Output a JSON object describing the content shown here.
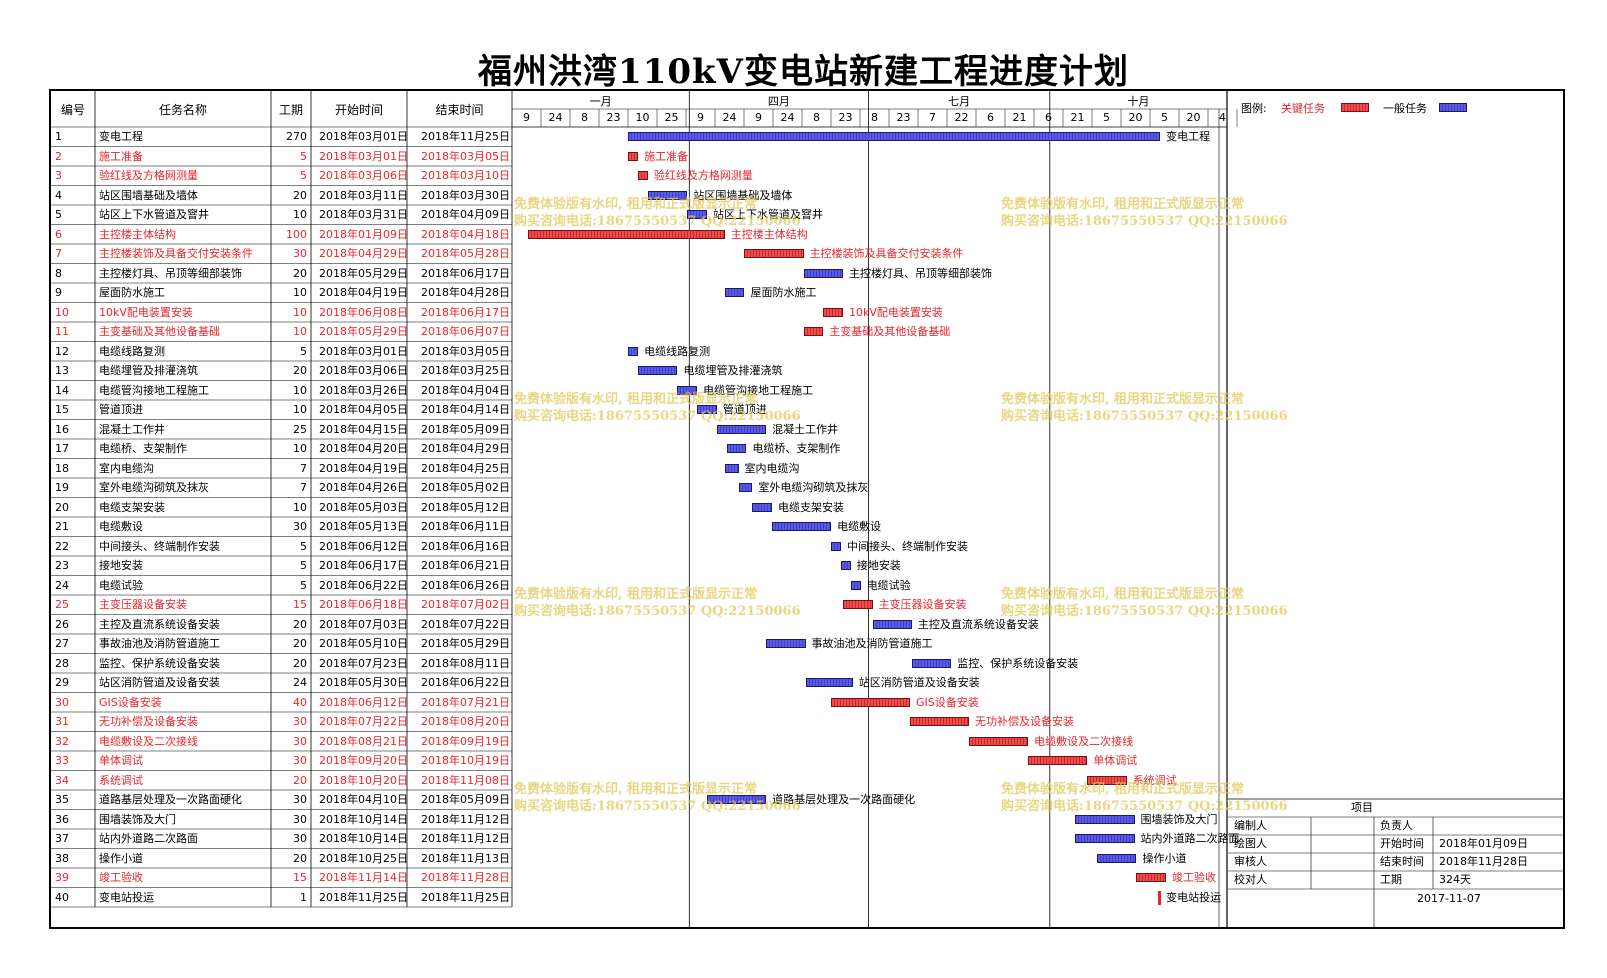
{
  "title": "福州洪湾110kV变电站新建工程进度计划",
  "headers": {
    "id": "编号",
    "name": "任务名称",
    "dur": "工期",
    "start": "开始时间",
    "end": "结束时间"
  },
  "months": [
    {
      "label": "一月",
      "day": 0
    },
    {
      "label": "四月",
      "day": 90
    },
    {
      "label": "七月",
      "day": 181
    },
    {
      "label": "十月",
      "day": 273
    }
  ],
  "ticks": [
    "9",
    "24",
    "8",
    "23",
    "10",
    "25",
    "9",
    "24",
    "9",
    "24",
    "8",
    "23",
    "8",
    "23",
    "7",
    "22",
    "6",
    "21",
    "6",
    "21",
    "5",
    "20",
    "5",
    "20",
    "4"
  ],
  "legend": {
    "label": "图例:",
    "critical": "关键任务",
    "normal": "一般任务",
    "critical_color": "#e8262c",
    "normal_color": "#4b4bd9"
  },
  "watermark": {
    "line1": "免费体验版有水印, 租用和正式版显示正常",
    "line2": "购买咨询电话:18675550537 QQ:22150066"
  },
  "tasks": [
    {
      "id": "1",
      "name": "变电工程",
      "dur": "270",
      "start": "2018年03月01日",
      "end": "2018年11月25日",
      "s": 59,
      "d": 270,
      "crit": false
    },
    {
      "id": "2",
      "name": "施工准备",
      "dur": "5",
      "start": "2018年03月01日",
      "end": "2018年03月05日",
      "s": 59,
      "d": 5,
      "crit": true
    },
    {
      "id": "3",
      "name": "验红线及方格网测量",
      "dur": "5",
      "start": "2018年03月06日",
      "end": "2018年03月10日",
      "s": 64,
      "d": 5,
      "crit": true
    },
    {
      "id": "4",
      "name": "站区围墙基础及墙体",
      "dur": "20",
      "start": "2018年03月11日",
      "end": "2018年03月30日",
      "s": 69,
      "d": 20,
      "crit": false
    },
    {
      "id": "5",
      "name": "站区上下水管道及窨井",
      "dur": "10",
      "start": "2018年03月31日",
      "end": "2018年04月09日",
      "s": 89,
      "d": 10,
      "crit": false
    },
    {
      "id": "6",
      "name": "主控楼主体结构",
      "dur": "100",
      "start": "2018年01月09日",
      "end": "2018年04月18日",
      "s": 8,
      "d": 100,
      "crit": true
    },
    {
      "id": "7",
      "name": "主控楼装饰及具备交付安装条件",
      "dur": "30",
      "start": "2018年04月29日",
      "end": "2018年05月28日",
      "s": 118,
      "d": 30,
      "crit": true
    },
    {
      "id": "8",
      "name": "主控楼灯具、吊顶等细部装饰",
      "dur": "20",
      "start": "2018年05月29日",
      "end": "2018年06月17日",
      "s": 148,
      "d": 20,
      "crit": false
    },
    {
      "id": "9",
      "name": "屋面防水施工",
      "dur": "10",
      "start": "2018年04月19日",
      "end": "2018年04月28日",
      "s": 108,
      "d": 10,
      "crit": false
    },
    {
      "id": "10",
      "name": "10kV配电装置安装",
      "dur": "10",
      "start": "2018年06月08日",
      "end": "2018年06月17日",
      "s": 158,
      "d": 10,
      "crit": true
    },
    {
      "id": "11",
      "name": "主变基础及其他设备基础",
      "dur": "10",
      "start": "2018年05月29日",
      "end": "2018年06月07日",
      "s": 148,
      "d": 10,
      "crit": true
    },
    {
      "id": "12",
      "name": "电缆线路复测",
      "dur": "5",
      "start": "2018年03月01日",
      "end": "2018年03月05日",
      "s": 59,
      "d": 5,
      "crit": false
    },
    {
      "id": "13",
      "name": "电缆埋管及排灌浇筑",
      "dur": "20",
      "start": "2018年03月06日",
      "end": "2018年03月25日",
      "s": 64,
      "d": 20,
      "crit": false
    },
    {
      "id": "14",
      "name": "电缆管沟接地工程施工",
      "dur": "10",
      "start": "2018年03月26日",
      "end": "2018年04月04日",
      "s": 84,
      "d": 10,
      "crit": false
    },
    {
      "id": "15",
      "name": "管道顶进",
      "dur": "10",
      "start": "2018年04月05日",
      "end": "2018年04月14日",
      "s": 94,
      "d": 10,
      "crit": false
    },
    {
      "id": "16",
      "name": "混凝土工作井",
      "dur": "25",
      "start": "2018年04月15日",
      "end": "2018年05月09日",
      "s": 104,
      "d": 25,
      "crit": false
    },
    {
      "id": "17",
      "name": "电缆桥、支架制作",
      "dur": "10",
      "start": "2018年04月20日",
      "end": "2018年04月29日",
      "s": 109,
      "d": 10,
      "crit": false
    },
    {
      "id": "18",
      "name": "室内电缆沟",
      "dur": "7",
      "start": "2018年04月19日",
      "end": "2018年04月25日",
      "s": 108,
      "d": 7,
      "crit": false
    },
    {
      "id": "19",
      "name": "室外电缆沟砌筑及抹灰",
      "dur": "7",
      "start": "2018年04月26日",
      "end": "2018年05月02日",
      "s": 115,
      "d": 7,
      "crit": false
    },
    {
      "id": "20",
      "name": "电缆支架安装",
      "dur": "10",
      "start": "2018年05月03日",
      "end": "2018年05月12日",
      "s": 122,
      "d": 10,
      "crit": false
    },
    {
      "id": "21",
      "name": "电缆敷设",
      "dur": "30",
      "start": "2018年05月13日",
      "end": "2018年06月11日",
      "s": 132,
      "d": 30,
      "crit": false
    },
    {
      "id": "22",
      "name": "中间接头、终端制作安装",
      "dur": "5",
      "start": "2018年06月12日",
      "end": "2018年06月16日",
      "s": 162,
      "d": 5,
      "crit": false
    },
    {
      "id": "23",
      "name": "接地安装",
      "dur": "5",
      "start": "2018年06月17日",
      "end": "2018年06月21日",
      "s": 167,
      "d": 5,
      "crit": false
    },
    {
      "id": "24",
      "name": "电缆试验",
      "dur": "5",
      "start": "2018年06月22日",
      "end": "2018年06月26日",
      "s": 172,
      "d": 5,
      "crit": false
    },
    {
      "id": "25",
      "name": "主变压器设备安装",
      "dur": "15",
      "start": "2018年06月18日",
      "end": "2018年07月02日",
      "s": 168,
      "d": 15,
      "crit": true
    },
    {
      "id": "26",
      "name": "主控及直流系统设备安装",
      "dur": "20",
      "start": "2018年07月03日",
      "end": "2018年07月22日",
      "s": 183,
      "d": 20,
      "crit": false
    },
    {
      "id": "27",
      "name": "事故油池及消防管道施工",
      "dur": "20",
      "start": "2018年05月10日",
      "end": "2018年05月29日",
      "s": 129,
      "d": 20,
      "crit": false
    },
    {
      "id": "28",
      "name": "监控、保护系统设备安装",
      "dur": "20",
      "start": "2018年07月23日",
      "end": "2018年08月11日",
      "s": 203,
      "d": 20,
      "crit": false
    },
    {
      "id": "29",
      "name": "站区消防管道及设备安装",
      "dur": "24",
      "start": "2018年05月30日",
      "end": "2018年06月22日",
      "s": 149,
      "d": 24,
      "crit": false
    },
    {
      "id": "30",
      "name": "GIS设备安装",
      "dur": "40",
      "start": "2018年06月12日",
      "end": "2018年07月21日",
      "s": 162,
      "d": 40,
      "crit": true
    },
    {
      "id": "31",
      "name": "无功补偿及设备安装",
      "dur": "30",
      "start": "2018年07月22日",
      "end": "2018年08月20日",
      "s": 202,
      "d": 30,
      "crit": true
    },
    {
      "id": "32",
      "name": "电缆敷设及二次接线",
      "dur": "30",
      "start": "2018年08月21日",
      "end": "2018年09月19日",
      "s": 232,
      "d": 30,
      "crit": true
    },
    {
      "id": "33",
      "name": "单体调试",
      "dur": "30",
      "start": "2018年09月20日",
      "end": "2018年10月19日",
      "s": 262,
      "d": 30,
      "crit": true
    },
    {
      "id": "34",
      "name": "系统调试",
      "dur": "20",
      "start": "2018年10月20日",
      "end": "2018年11月08日",
      "s": 292,
      "d": 20,
      "crit": true
    },
    {
      "id": "35",
      "name": "道路基层处理及一次路面硬化",
      "dur": "30",
      "start": "2018年04月10日",
      "end": "2018年05月09日",
      "s": 99,
      "d": 30,
      "crit": false
    },
    {
      "id": "36",
      "name": "围墙装饰及大门",
      "dur": "30",
      "start": "2018年10月14日",
      "end": "2018年11月12日",
      "s": 286,
      "d": 30,
      "crit": false
    },
    {
      "id": "37",
      "name": "站内外道路二次路面",
      "dur": "30",
      "start": "2018年10月14日",
      "end": "2018年11月12日",
      "s": 286,
      "d": 30,
      "crit": false
    },
    {
      "id": "38",
      "name": "操作小道",
      "dur": "20",
      "start": "2018年10月25日",
      "end": "2018年11月13日",
      "s": 297,
      "d": 20,
      "crit": false
    },
    {
      "id": "39",
      "name": "竣工验收",
      "dur": "15",
      "start": "2018年11月14日",
      "end": "2018年11月28日",
      "s": 317,
      "d": 15,
      "crit": true
    },
    {
      "id": "40",
      "name": "变电站投运",
      "dur": "1",
      "start": "2018年11月25日",
      "end": "2018年11月25日",
      "s": 328,
      "d": 1,
      "crit": false,
      "milestone": true
    }
  ],
  "info": {
    "project_label": "项目",
    "rows": [
      [
        "编制人",
        "",
        "负责人",
        ""
      ],
      [
        "绘图人",
        "",
        "开始时间",
        "2018年01月09日"
      ],
      [
        "审核人",
        "",
        "结束时间",
        "2018年11月28日"
      ],
      [
        "校对人",
        "",
        "工期",
        "324天"
      ]
    ],
    "date": "2017-11-07"
  }
}
